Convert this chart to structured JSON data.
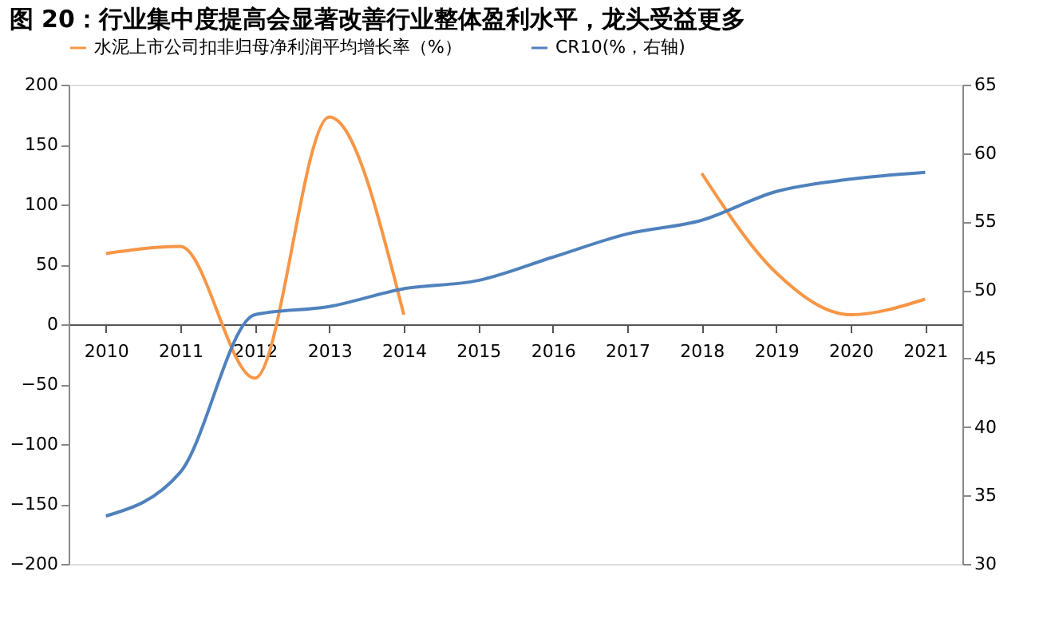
{
  "chart_data": {
    "type": "line",
    "title": "图 20：行业集中度提高会显著改善行业整体盈利水平，龙头受益更多",
    "categories": [
      "2010",
      "2011",
      "2012",
      "2013",
      "2014",
      "2015",
      "2016",
      "2017",
      "2018",
      "2019",
      "2020",
      "2021"
    ],
    "series": [
      {
        "name": "水泥上市公司扣非归母净利润平均增长率（%）",
        "color": "#f79646",
        "values": [
          59,
          65,
          -45,
          173,
          8,
          null,
          null,
          null,
          126,
          43,
          8,
          21
        ]
      },
      {
        "name": "CR10(%，右轴)",
        "color": "#4f81bd",
        "axis": "y2",
        "values": [
          33.5,
          36.7,
          48.2,
          48.8,
          50.1,
          50.7,
          52.4,
          54.1,
          55.1,
          57.2,
          58.1,
          58.6
        ]
      }
    ],
    "ylim": [
      -200,
      200
    ],
    "yticks": [
      -200,
      -150,
      -100,
      -50,
      0,
      50,
      100,
      150,
      200
    ],
    "y2lim": [
      30,
      65
    ],
    "y2ticks": [
      30,
      35,
      40,
      45,
      50,
      55,
      60,
      65
    ],
    "legend": "top",
    "grid": false,
    "marker": "none",
    "line_style": "solid"
  }
}
